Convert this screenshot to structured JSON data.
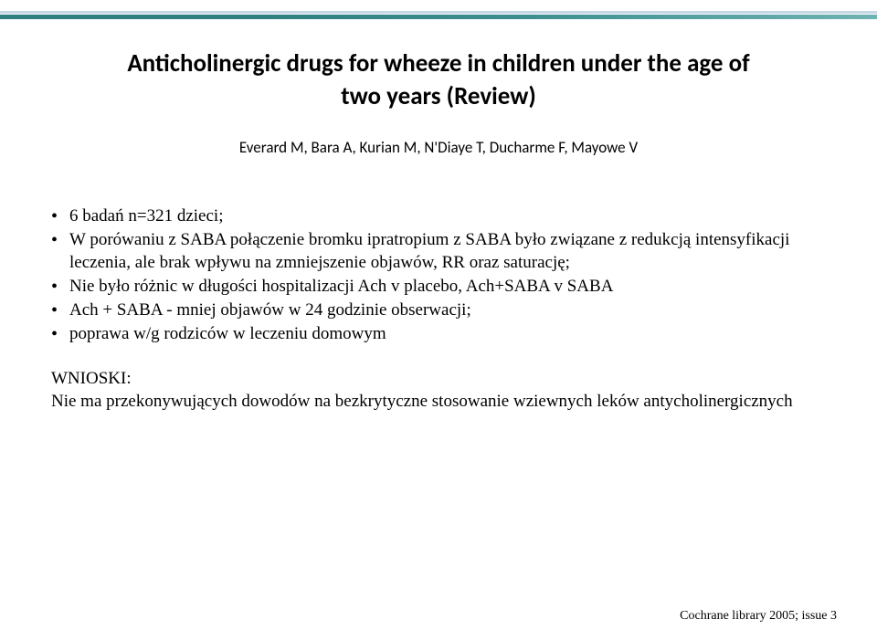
{
  "ribbon": {
    "top_bar_color": "#c5d7e5",
    "main_bar_color_start": "#2e7f7f",
    "main_bar_color_end": "#6fb2b2"
  },
  "title": {
    "line1": "Anticholinergic drugs for wheeze in children under the age of",
    "line2": "two years (Review)",
    "fontsize": 27,
    "font_weight": 700,
    "color": "#000000"
  },
  "authors": {
    "text": "Everard M, Bara A, Kurian M, N'Diaye T, Ducharme F, Mayowe V",
    "fontsize": 17,
    "color": "#000000"
  },
  "bullets": [
    "6 badań n=321 dzieci;",
    "W porówaniu z SABA połączenie bromku ipratropium z SABA było związane z redukcją intensyfikacji leczenia, ale brak wpływu na zmniejszenie objawów, RR oraz saturację;",
    "Nie było różnic w długości hospitalizacji Ach v placebo, Ach+SABA v SABA",
    "Ach + SABA - mniej objawów w 24 godzinie obserwacji;",
    "poprawa w/g rodziców w leczeniu domowym"
  ],
  "wnioski": {
    "heading": "WNIOSKI:",
    "text": "Nie ma przekonywujących dowodów na bezkrytyczne stosowanie wziewnych leków antycholinergicznych"
  },
  "citation": "Cochrane library 2005; issue 3",
  "body": {
    "fontsize": 19,
    "color": "#000000",
    "line_height": 1.32
  }
}
